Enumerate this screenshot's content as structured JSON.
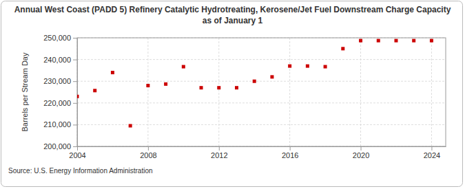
{
  "chart_data": {
    "type": "scatter",
    "title": "Annual West Coast (PADD 5) Refinery Catalytic Hydrotreating, Kerosene/Jet Fuel Downstream Charge Capacity as of January 1",
    "y_label": "Barrels per Stream Day",
    "annotations": [
      "Source: U.S. Energy Information Administration"
    ],
    "x": [
      2004,
      2005,
      2006,
      2007,
      2008,
      2009,
      2010,
      2011,
      2012,
      2013,
      2014,
      2015,
      2016,
      2017,
      2018,
      2019,
      2020,
      2021,
      2022,
      2023,
      2024
    ],
    "values": [
      223000,
      225700,
      234000,
      209500,
      228000,
      228700,
      236700,
      227000,
      227000,
      227000,
      230000,
      232000,
      237000,
      237000,
      236700,
      245000,
      248700,
      248700,
      248700,
      248700,
      248700
    ],
    "color": "#cc0000",
    "marker": "square",
    "xlim": [
      2004,
      2024.8
    ],
    "xticks": [
      2004,
      2008,
      2012,
      2016,
      2020,
      2024
    ],
    "ylim": [
      200000,
      250000
    ],
    "yticks": [
      {
        "value": 200000,
        "label": "200,000"
      },
      {
        "value": 210000,
        "label": "210,000"
      },
      {
        "value": 220000,
        "label": "220,000"
      },
      {
        "value": 230000,
        "label": "230,000"
      },
      {
        "value": 240000,
        "label": "240,000"
      },
      {
        "value": 250000,
        "label": "250,000"
      }
    ],
    "grid": true
  }
}
